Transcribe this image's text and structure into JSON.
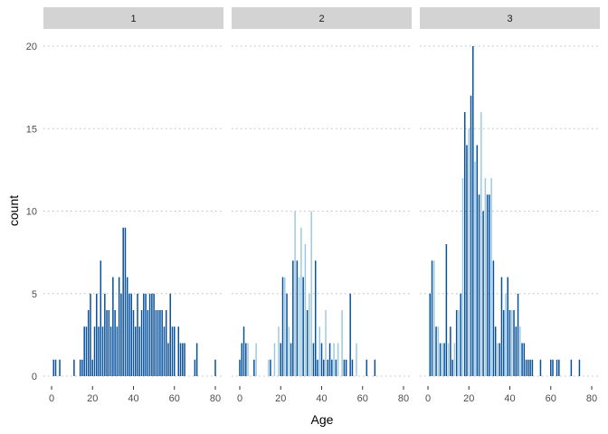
{
  "chart_data": {
    "type": "bar",
    "facet_variable": "class",
    "xlabel": "Age",
    "ylabel": "count",
    "xlim": [
      -2,
      82
    ],
    "ylim": [
      0,
      20
    ],
    "x_ticks": [
      0,
      20,
      40,
      60,
      80
    ],
    "y_ticks": [
      0,
      5,
      10,
      15,
      20
    ],
    "grid": "horizontal-dotted",
    "legend": "none",
    "colors": {
      "light": "#9ecae1",
      "dark": "#08519c",
      "strip": "#d3d3d3",
      "grid": "#bdbdbd"
    },
    "panels": [
      {
        "label": "1",
        "bars": [
          {
            "x": 1,
            "y": 1,
            "color": "#08519c"
          },
          {
            "x": 2,
            "y": 1,
            "color": "#08519c"
          },
          {
            "x": 4,
            "y": 1,
            "color": "#08519c"
          },
          {
            "x": 11,
            "y": 1,
            "color": "#08519c"
          },
          {
            "x": 14,
            "y": 1,
            "color": "#08519c"
          },
          {
            "x": 15,
            "y": 1,
            "color": "#08519c"
          },
          {
            "x": 16,
            "y": 3,
            "color": "#08519c"
          },
          {
            "x": 17,
            "y": 3,
            "color": "#08519c"
          },
          {
            "x": 18,
            "y": 4,
            "color": "#08519c"
          },
          {
            "x": 19,
            "y": 5,
            "color": "#08519c"
          },
          {
            "x": 20,
            "y": 1,
            "color": "#08519c"
          },
          {
            "x": 21,
            "y": 3,
            "color": "#08519c"
          },
          {
            "x": 22,
            "y": 5,
            "color": "#08519c"
          },
          {
            "x": 23,
            "y": 3,
            "color": "#08519c"
          },
          {
            "x": 24,
            "y": 7,
            "color": "#08519c"
          },
          {
            "x": 25,
            "y": 3,
            "color": "#08519c"
          },
          {
            "x": 26,
            "y": 5,
            "color": "#08519c"
          },
          {
            "x": 27,
            "y": 4,
            "color": "#08519c"
          },
          {
            "x": 28,
            "y": 4,
            "color": "#08519c"
          },
          {
            "x": 29,
            "y": 3,
            "color": "#08519c"
          },
          {
            "x": 30,
            "y": 6,
            "color": "#08519c"
          },
          {
            "x": 31,
            "y": 4,
            "color": "#08519c"
          },
          {
            "x": 32,
            "y": 3,
            "color": "#08519c"
          },
          {
            "x": 33,
            "y": 6,
            "color": "#08519c"
          },
          {
            "x": 34,
            "y": 5,
            "color": "#08519c"
          },
          {
            "x": 35,
            "y": 9,
            "color": "#08519c"
          },
          {
            "x": 36,
            "y": 9,
            "color": "#08519c"
          },
          {
            "x": 37,
            "y": 6,
            "color": "#08519c"
          },
          {
            "x": 38,
            "y": 5,
            "color": "#08519c"
          },
          {
            "x": 39,
            "y": 5,
            "color": "#08519c"
          },
          {
            "x": 40,
            "y": 4,
            "color": "#08519c"
          },
          {
            "x": 41,
            "y": 3,
            "color": "#08519c"
          },
          {
            "x": 42,
            "y": 5,
            "color": "#08519c"
          },
          {
            "x": 43,
            "y": 3,
            "color": "#08519c"
          },
          {
            "x": 44,
            "y": 4,
            "color": "#08519c"
          },
          {
            "x": 45,
            "y": 5,
            "color": "#08519c"
          },
          {
            "x": 46,
            "y": 5,
            "color": "#08519c"
          },
          {
            "x": 47,
            "y": 4,
            "color": "#08519c"
          },
          {
            "x": 48,
            "y": 5,
            "color": "#08519c"
          },
          {
            "x": 49,
            "y": 5,
            "color": "#08519c"
          },
          {
            "x": 50,
            "y": 5,
            "color": "#08519c"
          },
          {
            "x": 51,
            "y": 4,
            "color": "#08519c"
          },
          {
            "x": 52,
            "y": 4,
            "color": "#08519c"
          },
          {
            "x": 53,
            "y": 4,
            "color": "#08519c"
          },
          {
            "x": 54,
            "y": 4,
            "color": "#08519c"
          },
          {
            "x": 55,
            "y": 3,
            "color": "#08519c"
          },
          {
            "x": 56,
            "y": 4,
            "color": "#08519c"
          },
          {
            "x": 57,
            "y": 2,
            "color": "#08519c"
          },
          {
            "x": 58,
            "y": 5,
            "color": "#08519c"
          },
          {
            "x": 59,
            "y": 3,
            "color": "#08519c"
          },
          {
            "x": 60,
            "y": 3,
            "color": "#08519c"
          },
          {
            "x": 62,
            "y": 3,
            "color": "#08519c"
          },
          {
            "x": 63,
            "y": 2,
            "color": "#08519c"
          },
          {
            "x": 64,
            "y": 2,
            "color": "#08519c"
          },
          {
            "x": 65,
            "y": 2,
            "color": "#08519c"
          },
          {
            "x": 70,
            "y": 1,
            "color": "#08519c"
          },
          {
            "x": 71,
            "y": 2,
            "color": "#08519c"
          },
          {
            "x": 80,
            "y": 1,
            "color": "#08519c"
          }
        ]
      },
      {
        "label": "2",
        "bars": [
          {
            "x": 0,
            "y": 1,
            "color": "#08519c"
          },
          {
            "x": 1,
            "y": 2,
            "color": "#08519c"
          },
          {
            "x": 2,
            "y": 3,
            "color": "#08519c"
          },
          {
            "x": 3,
            "y": 2,
            "color": "#08519c"
          },
          {
            "x": 4,
            "y": 2,
            "color": "#9ecae1"
          },
          {
            "x": 7,
            "y": 1,
            "color": "#08519c"
          },
          {
            "x": 8,
            "y": 2,
            "color": "#9ecae1"
          },
          {
            "x": 14,
            "y": 1,
            "color": "#9ecae1"
          },
          {
            "x": 15,
            "y": 1,
            "color": "#08519c"
          },
          {
            "x": 17,
            "y": 2,
            "color": "#9ecae1"
          },
          {
            "x": 19,
            "y": 3,
            "color": "#9ecae1"
          },
          {
            "x": 20,
            "y": 2,
            "color": "#08519c"
          },
          {
            "x": 21,
            "y": 6,
            "color": "#08519c"
          },
          {
            "x": 22,
            "y": 6,
            "color": "#9ecae1"
          },
          {
            "x": 23,
            "y": 5,
            "color": "#08519c"
          },
          {
            "x": 24,
            "y": 3,
            "color": "#9ecae1"
          },
          {
            "x": 25,
            "y": 2,
            "color": "#08519c"
          },
          {
            "x": 26,
            "y": 7,
            "color": "#08519c"
          },
          {
            "x": 27,
            "y": 10,
            "color": "#9ecae1"
          },
          {
            "x": 28,
            "y": 7,
            "color": "#08519c"
          },
          {
            "x": 29,
            "y": 6,
            "color": "#9ecae1"
          },
          {
            "x": 30,
            "y": 9,
            "color": "#9ecae1"
          },
          {
            "x": 31,
            "y": 6,
            "color": "#08519c"
          },
          {
            "x": 32,
            "y": 8,
            "color": "#9ecae1"
          },
          {
            "x": 33,
            "y": 4,
            "color": "#08519c"
          },
          {
            "x": 34,
            "y": 5,
            "color": "#9ecae1"
          },
          {
            "x": 35,
            "y": 10,
            "color": "#9ecae1"
          },
          {
            "x": 36,
            "y": 2,
            "color": "#08519c"
          },
          {
            "x": 37,
            "y": 7,
            "color": "#08519c"
          },
          {
            "x": 38,
            "y": 1,
            "color": "#08519c"
          },
          {
            "x": 39,
            "y": 3,
            "color": "#9ecae1"
          },
          {
            "x": 40,
            "y": 2,
            "color": "#08519c"
          },
          {
            "x": 41,
            "y": 1,
            "color": "#08519c"
          },
          {
            "x": 42,
            "y": 4,
            "color": "#9ecae1"
          },
          {
            "x": 43,
            "y": 1,
            "color": "#08519c"
          },
          {
            "x": 44,
            "y": 2,
            "color": "#08519c"
          },
          {
            "x": 45,
            "y": 1,
            "color": "#08519c"
          },
          {
            "x": 46,
            "y": 2,
            "color": "#9ecae1"
          },
          {
            "x": 47,
            "y": 1,
            "color": "#08519c"
          },
          {
            "x": 48,
            "y": 2,
            "color": "#9ecae1"
          },
          {
            "x": 50,
            "y": 4,
            "color": "#9ecae1"
          },
          {
            "x": 51,
            "y": 1,
            "color": "#08519c"
          },
          {
            "x": 52,
            "y": 1,
            "color": "#08519c"
          },
          {
            "x": 54,
            "y": 5,
            "color": "#08519c"
          },
          {
            "x": 55,
            "y": 1,
            "color": "#08519c"
          },
          {
            "x": 57,
            "y": 2,
            "color": "#9ecae1"
          },
          {
            "x": 62,
            "y": 1,
            "color": "#08519c"
          },
          {
            "x": 66,
            "y": 1,
            "color": "#08519c"
          }
        ]
      },
      {
        "label": "3",
        "bars": [
          {
            "x": 1,
            "y": 5,
            "color": "#08519c"
          },
          {
            "x": 2,
            "y": 7,
            "color": "#08519c"
          },
          {
            "x": 3,
            "y": 7,
            "color": "#9ecae1"
          },
          {
            "x": 4,
            "y": 3,
            "color": "#08519c"
          },
          {
            "x": 5,
            "y": 3,
            "color": "#9ecae1"
          },
          {
            "x": 6,
            "y": 2,
            "color": "#08519c"
          },
          {
            "x": 7,
            "y": 2,
            "color": "#9ecae1"
          },
          {
            "x": 8,
            "y": 2,
            "color": "#08519c"
          },
          {
            "x": 9,
            "y": 8,
            "color": "#08519c"
          },
          {
            "x": 10,
            "y": 2,
            "color": "#9ecae1"
          },
          {
            "x": 11,
            "y": 3,
            "color": "#08519c"
          },
          {
            "x": 12,
            "y": 1,
            "color": "#08519c"
          },
          {
            "x": 13,
            "y": 2,
            "color": "#9ecae1"
          },
          {
            "x": 14,
            "y": 4,
            "color": "#08519c"
          },
          {
            "x": 15,
            "y": 4,
            "color": "#9ecae1"
          },
          {
            "x": 16,
            "y": 5,
            "color": "#08519c"
          },
          {
            "x": 17,
            "y": 12,
            "color": "#9ecae1"
          },
          {
            "x": 18,
            "y": 16,
            "color": "#08519c"
          },
          {
            "x": 19,
            "y": 14,
            "color": "#08519c"
          },
          {
            "x": 20,
            "y": 15,
            "color": "#9ecae1"
          },
          {
            "x": 21,
            "y": 17,
            "color": "#08519c"
          },
          {
            "x": 22,
            "y": 20,
            "color": "#08519c"
          },
          {
            "x": 23,
            "y": 13,
            "color": "#9ecae1"
          },
          {
            "x": 24,
            "y": 14,
            "color": "#08519c"
          },
          {
            "x": 25,
            "y": 11,
            "color": "#08519c"
          },
          {
            "x": 26,
            "y": 16,
            "color": "#9ecae1"
          },
          {
            "x": 27,
            "y": 10,
            "color": "#08519c"
          },
          {
            "x": 28,
            "y": 12,
            "color": "#9ecae1"
          },
          {
            "x": 29,
            "y": 11,
            "color": "#08519c"
          },
          {
            "x": 30,
            "y": 11,
            "color": "#08519c"
          },
          {
            "x": 31,
            "y": 12,
            "color": "#9ecae1"
          },
          {
            "x": 32,
            "y": 7,
            "color": "#08519c"
          },
          {
            "x": 33,
            "y": 3,
            "color": "#08519c"
          },
          {
            "x": 34,
            "y": 2,
            "color": "#9ecae1"
          },
          {
            "x": 35,
            "y": 2,
            "color": "#08519c"
          },
          {
            "x": 36,
            "y": 6,
            "color": "#08519c"
          },
          {
            "x": 37,
            "y": 4,
            "color": "#08519c"
          },
          {
            "x": 38,
            "y": 5,
            "color": "#9ecae1"
          },
          {
            "x": 39,
            "y": 6,
            "color": "#08519c"
          },
          {
            "x": 40,
            "y": 4,
            "color": "#08519c"
          },
          {
            "x": 41,
            "y": 4,
            "color": "#9ecae1"
          },
          {
            "x": 42,
            "y": 4,
            "color": "#08519c"
          },
          {
            "x": 43,
            "y": 3,
            "color": "#08519c"
          },
          {
            "x": 44,
            "y": 5,
            "color": "#08519c"
          },
          {
            "x": 45,
            "y": 3,
            "color": "#9ecae1"
          },
          {
            "x": 46,
            "y": 2,
            "color": "#08519c"
          },
          {
            "x": 47,
            "y": 2,
            "color": "#08519c"
          },
          {
            "x": 48,
            "y": 1,
            "color": "#08519c"
          },
          {
            "x": 49,
            "y": 1,
            "color": "#08519c"
          },
          {
            "x": 50,
            "y": 1,
            "color": "#08519c"
          },
          {
            "x": 51,
            "y": 1,
            "color": "#08519c"
          },
          {
            "x": 55,
            "y": 1,
            "color": "#08519c"
          },
          {
            "x": 60,
            "y": 1,
            "color": "#08519c"
          },
          {
            "x": 61,
            "y": 1,
            "color": "#08519c"
          },
          {
            "x": 63,
            "y": 1,
            "color": "#08519c"
          },
          {
            "x": 64,
            "y": 1,
            "color": "#08519c"
          },
          {
            "x": 70,
            "y": 1,
            "color": "#08519c"
          },
          {
            "x": 74,
            "y": 1,
            "color": "#08519c"
          }
        ]
      }
    ]
  }
}
